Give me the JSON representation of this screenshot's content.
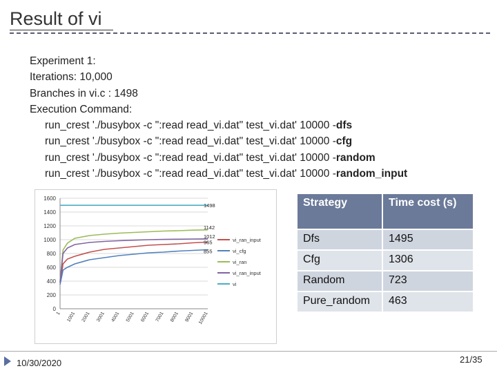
{
  "slide": {
    "title": "Result of vi ",
    "date": "10/30/2020",
    "page_current": "21",
    "page_sep": "/",
    "page_total": "35"
  },
  "body": {
    "experiment": "Experiment 1:",
    "iterations": "Iterations: 10,000",
    "branches": "Branches in vi.c : 1498",
    "exec_label": "Execution Command:",
    "commands": [
      {
        "prefix": "run_crest './busybox -c \":read read_vi.dat\" test_vi.dat' 10000 -",
        "strategy": "dfs"
      },
      {
        "prefix": "run_crest './busybox -c \":read read_vi.dat\" test_vi.dat' 10000 -",
        "strategy": "cfg"
      },
      {
        "prefix": "run_crest './busybox -c \":read read_vi.dat\" test_vi.dat' 10000 -",
        "strategy": "random"
      },
      {
        "prefix": "run_crest './busybox -c \":read read_vi.dat\" test_vi.dat' 10000 -",
        "strategy": "random_input"
      }
    ]
  },
  "table": {
    "headers": [
      "Strategy",
      "Time cost (s)"
    ],
    "rows": [
      [
        "Dfs",
        "1495"
      ],
      [
        "Cfg",
        "1306"
      ],
      [
        "Random",
        "723"
      ],
      [
        "Pure_random",
        "463"
      ]
    ]
  },
  "chart_data": {
    "type": "line",
    "ylim": [
      0,
      1600
    ],
    "yticks": [
      0,
      200,
      400,
      600,
      800,
      1000,
      1200,
      1400,
      1600
    ],
    "xlim": [
      1,
      10001
    ],
    "xticks": [
      "1",
      "1001",
      "2001",
      "3001",
      "4001",
      "5001",
      "6001",
      "7001",
      "8001",
      "9001",
      "10001"
    ],
    "annotations": [
      "1498",
      "1142",
      "1012",
      "965",
      "855"
    ],
    "series": [
      {
        "name": "vi_ran_input",
        "color": "#c0504d",
        "x": [
          1,
          200,
          500,
          1000,
          2000,
          3000,
          4000,
          5000,
          6000,
          7000,
          8000,
          9000,
          10001
        ],
        "y": [
          380,
          650,
          720,
          760,
          820,
          860,
          880,
          900,
          920,
          930,
          940,
          955,
          965
        ]
      },
      {
        "name": "vi_cfg",
        "color": "#4f81bd",
        "x": [
          1,
          200,
          500,
          1000,
          2000,
          3000,
          4000,
          5000,
          6000,
          7000,
          8000,
          9000,
          10001
        ],
        "y": [
          350,
          560,
          600,
          650,
          710,
          740,
          770,
          790,
          810,
          820,
          835,
          845,
          855
        ]
      },
      {
        "name": "vi_ran",
        "color": "#9bbb59",
        "x": [
          1,
          200,
          500,
          1000,
          2000,
          3000,
          4000,
          5000,
          6000,
          7000,
          8000,
          9000,
          10001
        ],
        "y": [
          400,
          850,
          950,
          1020,
          1060,
          1080,
          1095,
          1105,
          1115,
          1125,
          1130,
          1138,
          1142
        ]
      },
      {
        "name": "vi_ran_input",
        "color": "#8064a2",
        "x": [
          1,
          200,
          500,
          1000,
          2000,
          3000,
          4000,
          5000,
          6000,
          7000,
          8000,
          9000,
          10001
        ],
        "y": [
          380,
          800,
          880,
          930,
          960,
          975,
          985,
          993,
          1000,
          1004,
          1007,
          1010,
          1012
        ]
      },
      {
        "name": "vi",
        "color": "#4bacc6",
        "x": [
          1,
          10001
        ],
        "y": [
          1498,
          1498
        ]
      }
    ]
  }
}
